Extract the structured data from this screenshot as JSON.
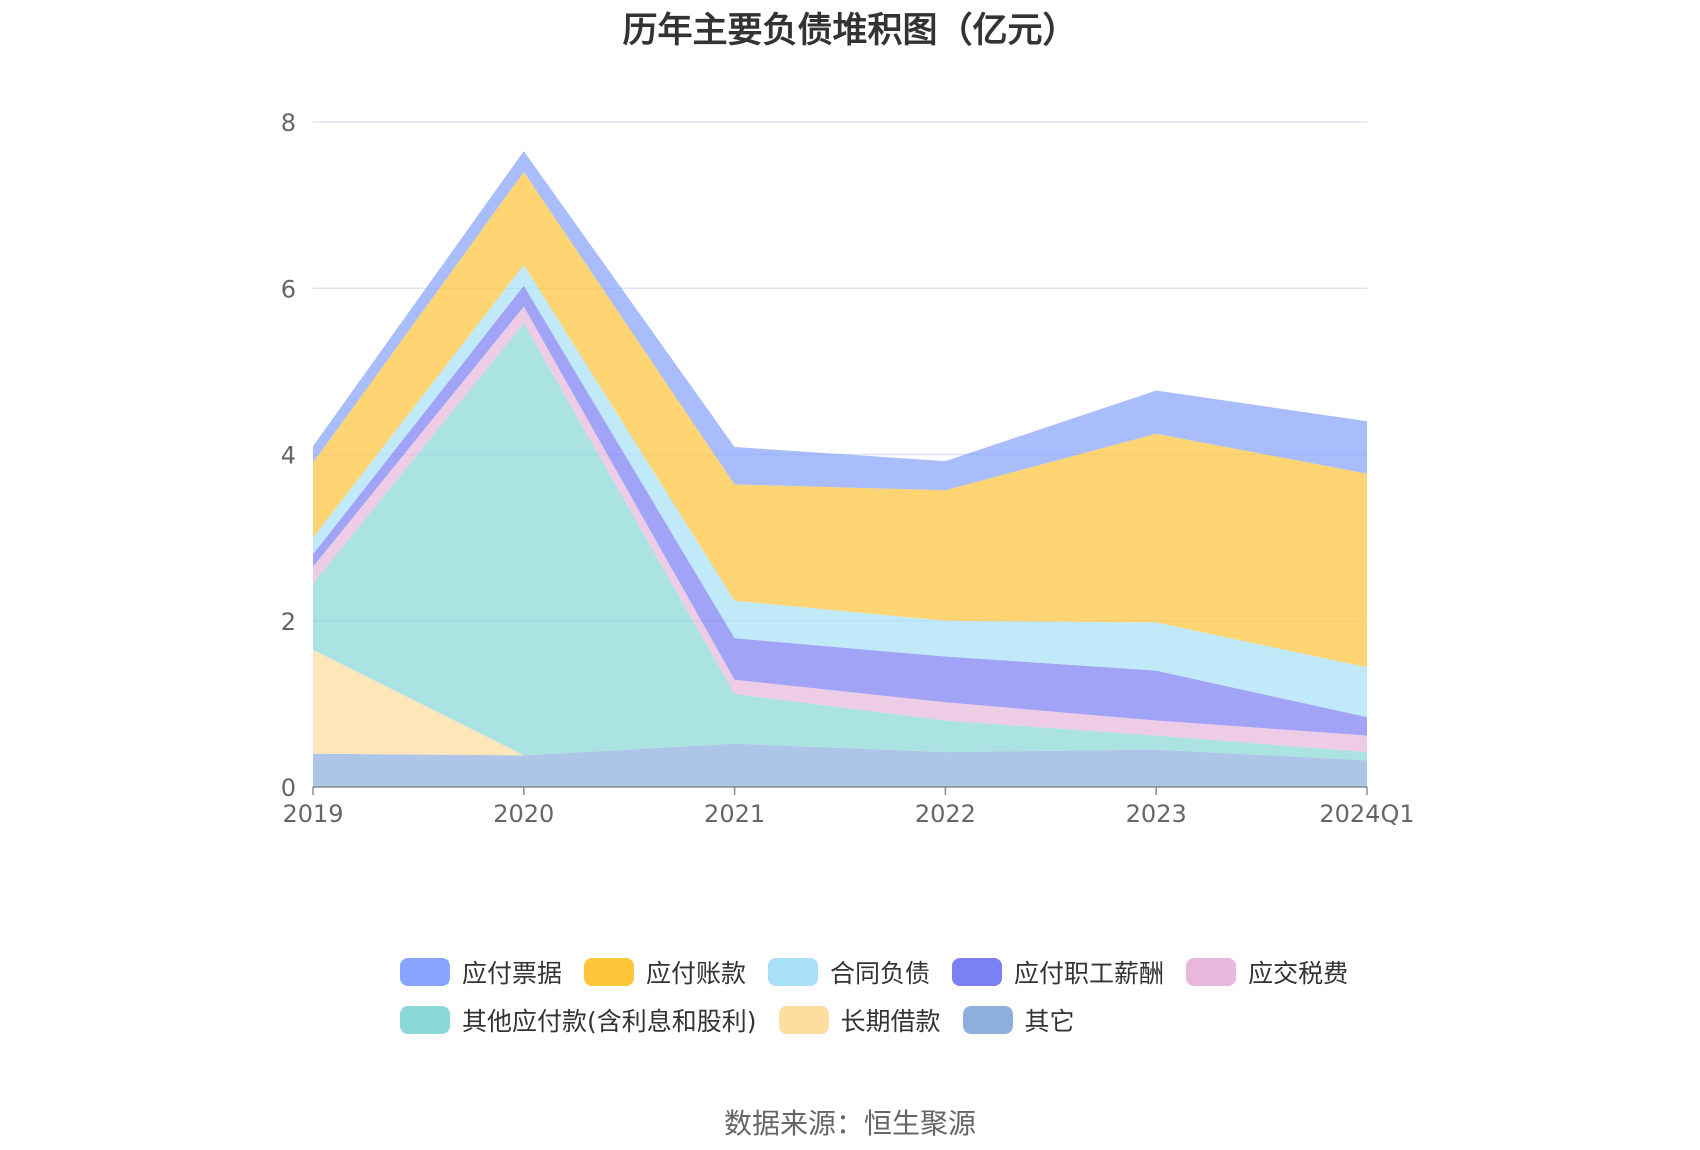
{
  "title": "历年主要负债堆积图（亿元）",
  "source": "数据来源：恒生聚源",
  "chart_data": {
    "type": "area",
    "stacked": true,
    "title": "历年主要负债堆积图（亿元）",
    "categories": [
      "2019",
      "2020",
      "2021",
      "2022",
      "2023",
      "2024Q1"
    ],
    "ylim": [
      0,
      8
    ],
    "yticks": [
      0,
      2,
      4,
      6,
      8
    ],
    "grid": true,
    "legend_position": "bottom",
    "series": [
      {
        "name": "其它",
        "color": "#8eaedc",
        "values": [
          0.4,
          0.38,
          0.52,
          0.42,
          0.45,
          0.32
        ]
      },
      {
        "name": "长期借款",
        "color": "#ffdca0",
        "values": [
          1.25,
          0.0,
          0.0,
          0.0,
          0.0,
          0.0
        ]
      },
      {
        "name": "其他应付款(含利息和股利)",
        "color": "#8ad8d8",
        "values": [
          0.8,
          5.2,
          0.6,
          0.38,
          0.17,
          0.1
        ]
      },
      {
        "name": "应交税费",
        "color": "#e8b8dc",
        "values": [
          0.2,
          0.2,
          0.17,
          0.22,
          0.18,
          0.2
        ]
      },
      {
        "name": "应付职工薪酬",
        "color": "#7b80f2",
        "values": [
          0.15,
          0.25,
          0.5,
          0.55,
          0.6,
          0.22
        ]
      },
      {
        "name": "合同负债",
        "color": "#a8e0f8",
        "values": [
          0.2,
          0.25,
          0.45,
          0.43,
          0.58,
          0.6
        ]
      },
      {
        "name": "应付账款",
        "color": "#ffc53d",
        "values": [
          0.9,
          1.12,
          1.4,
          1.57,
          2.27,
          2.33
        ]
      },
      {
        "name": "应付票据",
        "color": "#88a4fc",
        "values": [
          0.2,
          0.25,
          0.45,
          0.35,
          0.52,
          0.63
        ]
      }
    ]
  },
  "legend": {
    "row1": [
      {
        "name": "应付票据",
        "color": "#88a4fc"
      },
      {
        "name": "应付账款",
        "color": "#ffc53d"
      },
      {
        "name": "合同负债",
        "color": "#a8e0f8"
      },
      {
        "name": "应付职工薪酬",
        "color": "#7b80f2"
      },
      {
        "name": "应交税费",
        "color": "#e8b8dc"
      }
    ],
    "row2": [
      {
        "name": "其他应付款(含利息和股利)",
        "color": "#8ad8d8"
      },
      {
        "name": "长期借款",
        "color": "#ffdca0"
      },
      {
        "name": "其它",
        "color": "#8eaedc"
      }
    ]
  }
}
